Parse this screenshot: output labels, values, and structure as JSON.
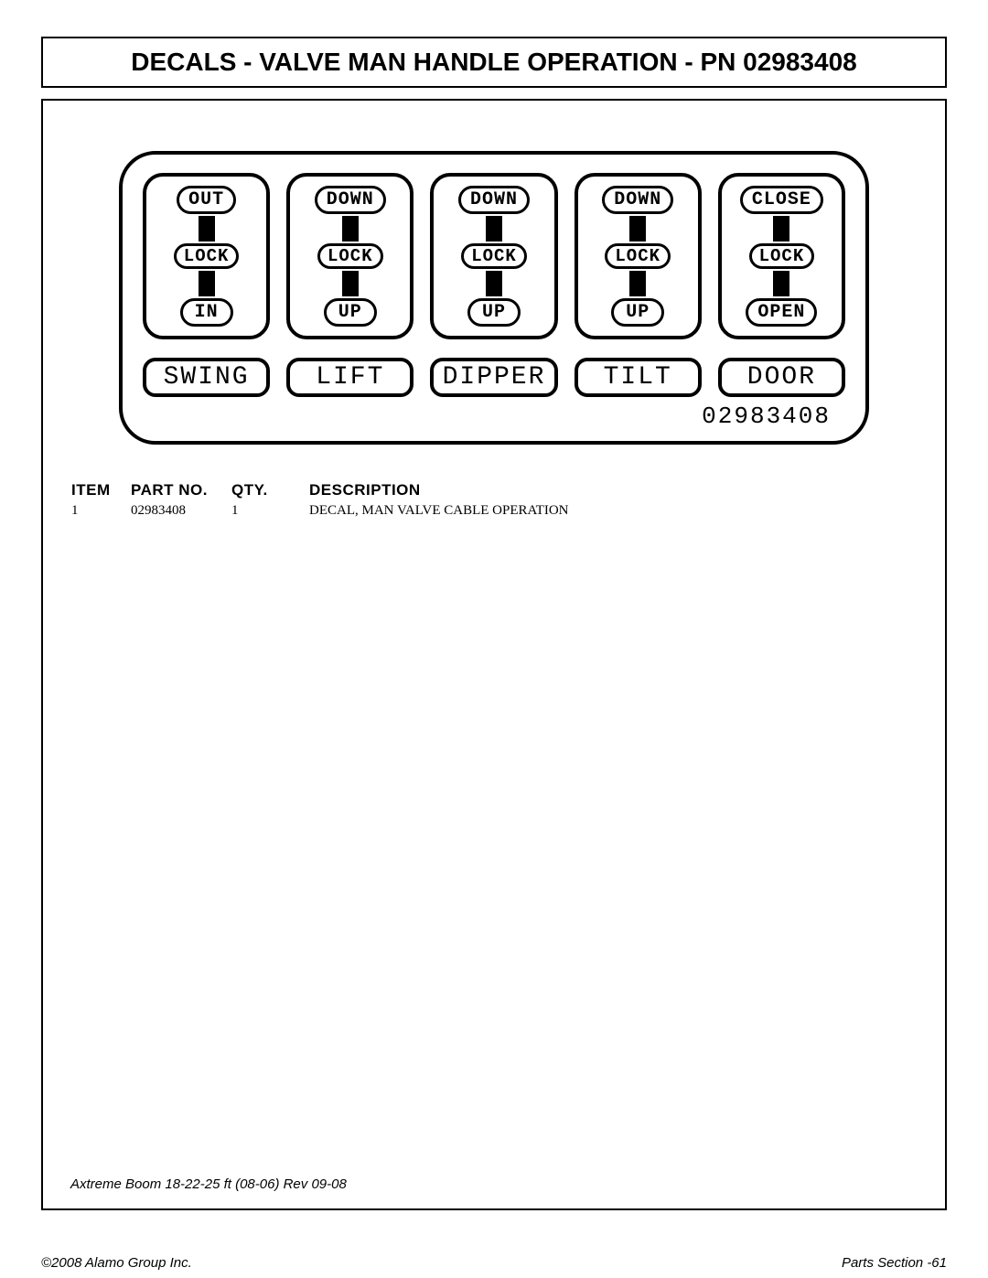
{
  "title": "DECALS - VALVE MAN HANDLE OPERATION - PN 02983408",
  "decal": {
    "part_number_label": "02983408",
    "controls": [
      {
        "top": "OUT",
        "mid": "LOCK",
        "bot": "IN",
        "name": "SWING"
      },
      {
        "top": "DOWN",
        "mid": "LOCK",
        "bot": "UP",
        "name": "LIFT"
      },
      {
        "top": "DOWN",
        "mid": "LOCK",
        "bot": "UP",
        "name": "DIPPER"
      },
      {
        "top": "DOWN",
        "mid": "LOCK",
        "bot": "UP",
        "name": "TILT"
      },
      {
        "top": "CLOSE",
        "mid": "LOCK",
        "bot": "OPEN",
        "name": "DOOR"
      }
    ]
  },
  "table": {
    "headers": {
      "item": "ITEM",
      "part": "PART NO.",
      "qty": "QTY.",
      "desc": "DESCRIPTION"
    },
    "rows": [
      {
        "item": "1",
        "part": "02983408",
        "qty": "1",
        "desc": "DECAL, MAN VALVE CABLE OPERATION"
      }
    ]
  },
  "rev_line": "Axtreme Boom 18-22-25 ft (08-06) Rev 09-08",
  "footer_left": "©2008 Alamo Group Inc.",
  "footer_right": "Parts Section -61"
}
